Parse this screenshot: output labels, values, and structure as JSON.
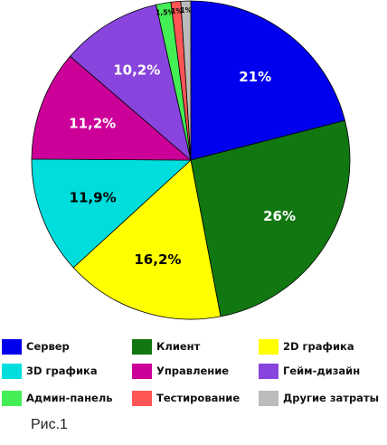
{
  "chart_data": {
    "type": "pie",
    "title": "",
    "slices": [
      {
        "name": "Сервер",
        "value": 21,
        "label": "21%",
        "color": "#0000ee"
      },
      {
        "name": "Клиент",
        "value": 26,
        "label": "26%",
        "color": "#117711"
      },
      {
        "name": "2D графика",
        "value": 16.2,
        "label": "16,2%",
        "color": "#ffff00"
      },
      {
        "name": "3D графика",
        "value": 11.9,
        "label": "11,9%",
        "color": "#00dddd"
      },
      {
        "name": "Управление",
        "value": 11.2,
        "label": "11,2%",
        "color": "#cc0099"
      },
      {
        "name": "Гейм-дизайн",
        "value": 10.2,
        "label": "10,2%",
        "color": "#8844dd"
      },
      {
        "name": "Админ-панель",
        "value": 1.5,
        "label": "1,5%",
        "color": "#44ee55"
      },
      {
        "name": "Тестирование",
        "value": 1,
        "label": "1%",
        "color": "#ff5555"
      },
      {
        "name": "Другие затраты",
        "value": 1,
        "label": "1%",
        "color": "#bbbbbb"
      }
    ],
    "legend_position": "bottom"
  },
  "caption": "Рис.1"
}
